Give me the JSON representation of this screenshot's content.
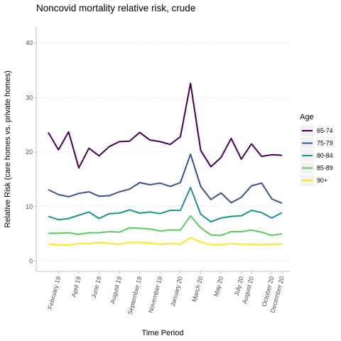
{
  "chart_data": {
    "type": "line",
    "title": "Noncovid mortality relative risk, crude",
    "xlabel": "Time Period",
    "ylabel": "Relative Risk (care homes vs. private homes)",
    "ylim": [
      0,
      42
    ],
    "yticks": [
      0,
      10,
      20,
      30,
      40
    ],
    "grid": true,
    "legend_position": "right",
    "legend_title": "Age",
    "x": [
      "2019-01",
      "2019-02",
      "2019-03",
      "2019-04",
      "2019-05",
      "2019-06",
      "2019-07",
      "2019-08",
      "2019-09",
      "2019-10",
      "2019-11",
      "2019-12",
      "2020-01",
      "2020-02",
      "2020-03",
      "2020-04",
      "2020-05",
      "2020-06",
      "2020-07",
      "2020-08",
      "2020-09",
      "2020-10",
      "2020-11",
      "2020-12"
    ],
    "xtick_labels": [
      "February 19",
      "April 19",
      "June 19",
      "August 19",
      "September 19",
      "November 19",
      "January 20",
      "March 20",
      "May 20",
      "July 20",
      "August 20",
      "October 20",
      "December 20"
    ],
    "xtick_positions": [
      1,
      3,
      5,
      7,
      9,
      11,
      13,
      15,
      17,
      19,
      20,
      22,
      23
    ],
    "series": [
      {
        "name": "65-74",
        "color": "#440154",
        "values": [
          23.6,
          20.4,
          23.7,
          17.1,
          20.7,
          19.3,
          21.0,
          21.9,
          22.0,
          23.6,
          22.2,
          21.9,
          21.4,
          22.8,
          32.6,
          20.3,
          17.3,
          19.0,
          22.5,
          18.7,
          21.5,
          19.2,
          19.5,
          19.4
        ]
      },
      {
        "name": "75-79",
        "color": "#3b528b",
        "values": [
          13.1,
          12.2,
          11.8,
          12.4,
          12.7,
          11.9,
          12.0,
          12.7,
          13.2,
          14.4,
          14.0,
          14.3,
          13.7,
          14.4,
          19.6,
          13.7,
          11.3,
          12.5,
          10.7,
          11.7,
          13.8,
          14.3,
          11.4,
          10.6
        ]
      },
      {
        "name": "80-84",
        "color": "#21918c",
        "values": [
          8.2,
          7.6,
          7.8,
          8.4,
          9.0,
          7.8,
          8.7,
          8.8,
          9.4,
          8.8,
          9.0,
          8.7,
          9.3,
          9.3,
          13.5,
          8.6,
          7.2,
          7.9,
          8.2,
          8.3,
          9.3,
          8.9,
          7.9,
          8.9
        ]
      },
      {
        "name": "85-89",
        "color": "#5ec962",
        "values": [
          5.1,
          5.1,
          5.2,
          4.9,
          5.2,
          5.2,
          5.4,
          5.3,
          6.1,
          6.0,
          5.9,
          5.5,
          5.7,
          5.7,
          8.3,
          6.1,
          4.8,
          4.7,
          5.4,
          5.4,
          5.7,
          5.3,
          4.7,
          5.0
        ]
      },
      {
        "name": "90+",
        "color": "#fde725",
        "values": [
          3.1,
          3.0,
          2.9,
          3.2,
          3.2,
          3.4,
          3.2,
          3.1,
          3.4,
          3.4,
          3.3,
          3.1,
          3.2,
          3.1,
          4.3,
          3.5,
          3.0,
          3.0,
          3.2,
          3.1,
          3.1,
          3.0,
          3.1,
          3.1
        ]
      }
    ]
  }
}
